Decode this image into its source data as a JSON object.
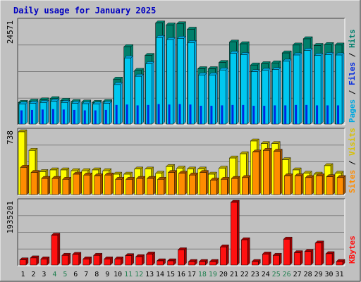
{
  "title": "Daily usage for January 2025",
  "colors": {
    "background": "#c0c0c0",
    "panel": "#c0c0c0",
    "grid": "#808080",
    "title": "#0000c0",
    "hits_front": "#00c8f0",
    "hits_side": "#00806c",
    "files_front": "#0028e0",
    "pages_front": "#00a8e0",
    "visits_front": "#ffff00",
    "visits_side": "#b0a000",
    "sites_front": "#ff8c00",
    "sites_side": "#a05000",
    "kbytes_front": "#ff1010",
    "kbytes_side": "#a00000",
    "weekday_label": "#000000",
    "weekend_label": "#208050"
  },
  "chart_data": [
    {
      "type": "bar",
      "panel": "hits-files-pages",
      "ymax_label": "24571",
      "ylim": [
        0,
        24571
      ],
      "right_label": [
        {
          "text": "Pages",
          "color": "#00a8e0"
        },
        {
          "text": " / ",
          "color": "#000000"
        },
        {
          "text": "Files",
          "color": "#0028e0"
        },
        {
          "text": " / ",
          "color": "#000000"
        },
        {
          "text": "Hits",
          "color": "#00806c"
        }
      ],
      "series": [
        {
          "name": "Hits",
          "values": [
            5200,
            5500,
            5800,
            6100,
            5700,
            5400,
            5300,
            5200,
            5400,
            10800,
            18600,
            12900,
            16500,
            24300,
            23800,
            24100,
            22800,
            13300,
            13300,
            14800,
            19700,
            19300,
            14200,
            14500,
            14700,
            17100,
            19000,
            20500,
            18900,
            19100,
            19000
          ]
        },
        {
          "name": "Files",
          "values": [
            3300,
            3400,
            3500,
            3600,
            3500,
            3400,
            3300,
            3300,
            3400,
            4600,
            4700,
            4500,
            4600,
            4800,
            4700,
            4800,
            4700,
            4400,
            4400,
            4500,
            4600,
            4600,
            4400,
            4400,
            4500,
            4500,
            4600,
            4600,
            4500,
            4500,
            4500
          ]
        },
        {
          "name": "Pages",
          "values": [
            4800,
            5000,
            5200,
            5500,
            5200,
            5000,
            4900,
            4800,
            5000,
            9500,
            15900,
            11500,
            14500,
            20800,
            20300,
            20600,
            19600,
            11800,
            11800,
            13000,
            17000,
            16700,
            12600,
            12900,
            13100,
            15100,
            16600,
            17700,
            16500,
            16700,
            16600
          ]
        }
      ]
    },
    {
      "type": "bar",
      "panel": "visits-sites",
      "ymax_label": "738",
      "ylim": [
        0,
        738
      ],
      "right_label": [
        {
          "text": "Sites",
          "color": "#ff8c00"
        },
        {
          "text": " / ",
          "color": "#000000"
        },
        {
          "text": "Visits",
          "color": "#d8c000"
        }
      ],
      "series": [
        {
          "name": "Visits",
          "values": [
            738,
            520,
            270,
            290,
            290,
            280,
            280,
            290,
            280,
            240,
            240,
            300,
            300,
            250,
            330,
            310,
            300,
            300,
            240,
            310,
            430,
            480,
            630,
            600,
            600,
            410,
            290,
            250,
            240,
            340,
            250
          ]
        },
        {
          "name": "Sites",
          "values": [
            320,
            260,
            190,
            190,
            180,
            240,
            230,
            220,
            230,
            180,
            180,
            190,
            190,
            180,
            260,
            250,
            230,
            260,
            170,
            180,
            190,
            200,
            500,
            520,
            510,
            220,
            220,
            200,
            220,
            210,
            200
          ]
        }
      ]
    },
    {
      "type": "bar",
      "panel": "kbytes",
      "ymax_label": "1935201",
      "ylim": [
        0,
        1935201
      ],
      "right_label": [
        {
          "text": "KBytes",
          "color": "#ff1010"
        }
      ],
      "series": [
        {
          "name": "KBytes",
          "values": [
            160000,
            220000,
            190000,
            920000,
            300000,
            330000,
            190000,
            300000,
            190000,
            190000,
            290000,
            260000,
            340000,
            130000,
            130000,
            470000,
            110000,
            110000,
            110000,
            560000,
            1935201,
            780000,
            110000,
            340000,
            300000,
            800000,
            380000,
            420000,
            680000,
            350000,
            110000
          ]
        }
      ]
    }
  ],
  "days": [
    "1",
    "2",
    "3",
    "4",
    "5",
    "6",
    "7",
    "8",
    "9",
    "10",
    "11",
    "12",
    "13",
    "14",
    "15",
    "16",
    "17",
    "18",
    "19",
    "20",
    "21",
    "22",
    "23",
    "24",
    "25",
    "26",
    "27",
    "28",
    "29",
    "30",
    "31"
  ],
  "weekend_days": [
    4,
    5,
    11,
    12,
    18,
    19,
    25,
    26
  ]
}
